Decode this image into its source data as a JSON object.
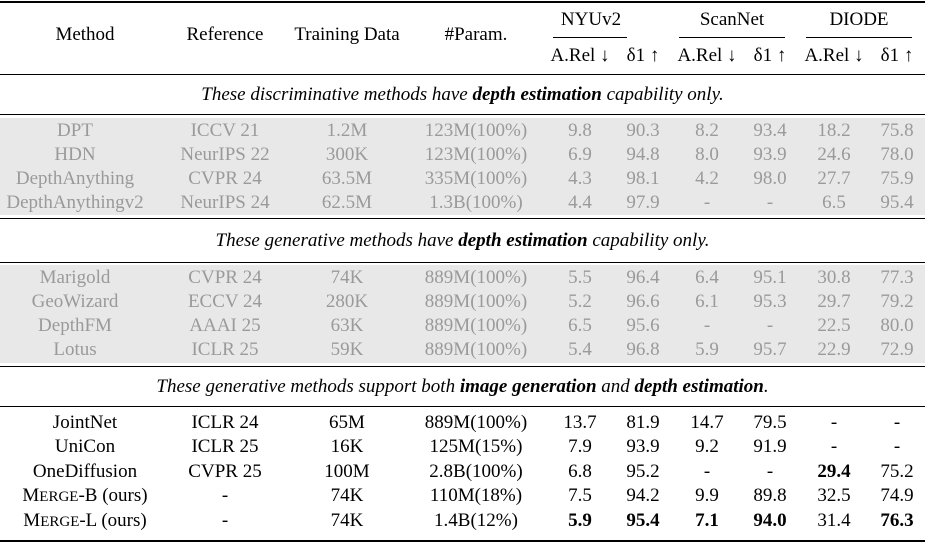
{
  "header": {
    "method": "Method",
    "reference": "Reference",
    "training_data": "Training Data",
    "params": "#Param.",
    "datasets": [
      "NYUv2",
      "ScanNet",
      "DIODE"
    ],
    "metric_arel": "A.Rel ↓",
    "metric_delta": "δ1 ↑"
  },
  "sections": [
    {
      "caption_parts": [
        {
          "text": "These discriminative methods have ",
          "bold": false
        },
        {
          "text": "depth estimation",
          "bold": true
        },
        {
          "text": " capability only.",
          "bold": false
        }
      ],
      "greyed": true,
      "rows": [
        [
          "DPT",
          "ICCV 21",
          "1.2M",
          "123M(100%)",
          "9.8",
          "90.3",
          "8.2",
          "93.4",
          "18.2",
          "75.8"
        ],
        [
          "HDN",
          "NeurIPS 22",
          "300K",
          "123M(100%)",
          "6.9",
          "94.8",
          "8.0",
          "93.9",
          "24.6",
          "78.0"
        ],
        [
          "DepthAnything",
          "CVPR 24",
          "63.5M",
          "335M(100%)",
          "4.3",
          "98.1",
          "4.2",
          "98.0",
          "27.7",
          "75.9"
        ],
        [
          "DepthAnythingv2",
          "NeurIPS 24",
          "62.5M",
          "1.3B(100%)",
          "4.4",
          "97.9",
          "-",
          "-",
          "6.5",
          "95.4"
        ]
      ]
    },
    {
      "caption_parts": [
        {
          "text": "These generative methods have ",
          "bold": false
        },
        {
          "text": "depth estimation",
          "bold": true
        },
        {
          "text": " capability only.",
          "bold": false
        }
      ],
      "greyed": true,
      "rows": [
        [
          "Marigold",
          "CVPR 24",
          "74K",
          "889M(100%)",
          "5.5",
          "96.4",
          "6.4",
          "95.1",
          "30.8",
          "77.3"
        ],
        [
          "GeoWizard",
          "ECCV 24",
          "280K",
          "889M(100%)",
          "5.2",
          "96.6",
          "6.1",
          "95.3",
          "29.7",
          "79.2"
        ],
        [
          "DepthFM",
          "AAAI 25",
          "63K",
          "889M(100%)",
          "6.5",
          "95.6",
          "-",
          "-",
          "22.5",
          "80.0"
        ],
        [
          "Lotus",
          "ICLR 25",
          "59K",
          "889M(100%)",
          "5.4",
          "96.8",
          "5.9",
          "95.7",
          "22.9",
          "72.9"
        ]
      ]
    },
    {
      "caption_parts": [
        {
          "text": "These generative methods support both ",
          "bold": false
        },
        {
          "text": "image generation",
          "bold": true
        },
        {
          "text": " and ",
          "bold": false
        },
        {
          "text": "depth estimation",
          "bold": true
        },
        {
          "text": ".",
          "bold": false
        }
      ],
      "greyed": false,
      "rows": [
        [
          "JointNet",
          "ICLR 24",
          "65M",
          "889M(100%)",
          "13.7",
          "81.9",
          "14.7",
          "79.5",
          "-",
          "-"
        ],
        [
          "UniCon",
          "ICLR 25",
          "16K",
          "125M(15%)",
          "7.9",
          "93.9",
          "9.2",
          "91.9",
          "-",
          "-"
        ],
        [
          "OneDiffusion",
          "CVPR 25",
          "100M",
          "2.8B(100%)",
          "6.8",
          "95.2",
          "-",
          "-",
          "29.4",
          "75.2"
        ],
        [
          "MERGE-B (ours)",
          "-",
          "74K",
          "110M(18%)",
          "7.5",
          "94.2",
          "9.9",
          "89.8",
          "32.5",
          "74.9"
        ],
        [
          "MERGE-L (ours)",
          "-",
          "74K",
          "1.4B(12%)",
          "5.9",
          "95.4",
          "7.1",
          "94.0",
          "31.4",
          "76.3"
        ]
      ],
      "bold_cells": [
        [
          2,
          8
        ],
        [
          4,
          4
        ],
        [
          4,
          5
        ],
        [
          4,
          6
        ],
        [
          4,
          7
        ],
        [
          4,
          9
        ]
      ]
    }
  ]
}
